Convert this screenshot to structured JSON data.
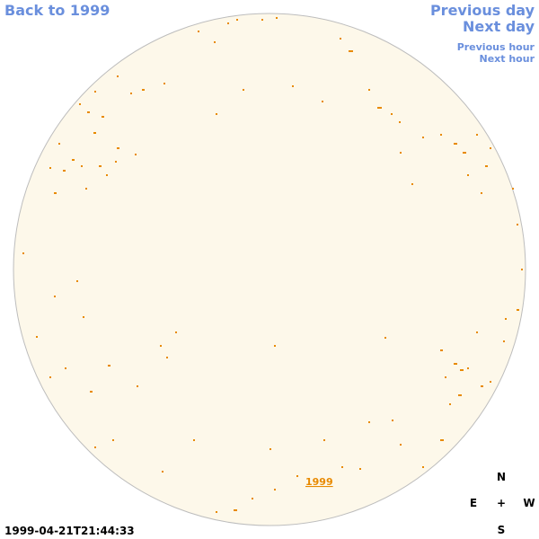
{
  "navigation": {
    "back": "Back to 1999",
    "previous_day": "Previous day",
    "next_day": "Next day",
    "previous_hour": "Previous hour",
    "next_hour": "Next hour"
  },
  "disk_label": "1999",
  "timestamp": "1999-04-21T21:44:33",
  "compass": {
    "north": "N",
    "east": "E",
    "center": "+",
    "west": "W",
    "south": "S"
  }
}
